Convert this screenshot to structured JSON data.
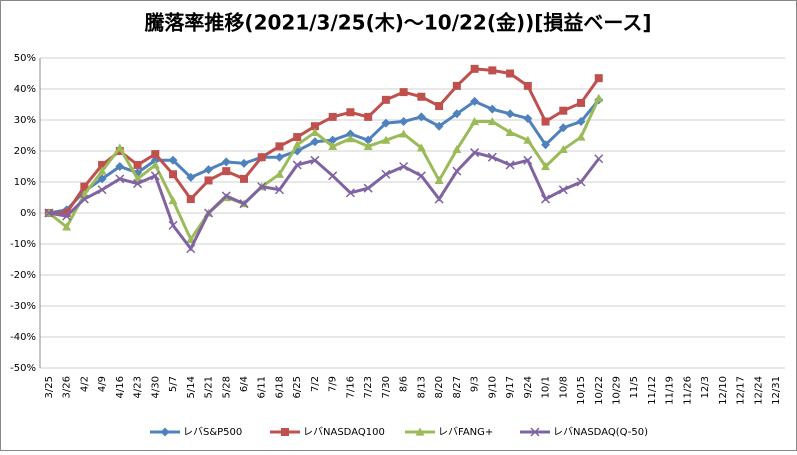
{
  "chart_data": {
    "type": "line",
    "title": "騰落率推移(2021/3/25(木)～10/22(金))[損益ベース]",
    "categories": [
      "3/25",
      "3/26",
      "4/2",
      "4/9",
      "4/16",
      "4/23",
      "4/30",
      "5/7",
      "5/14",
      "5/21",
      "5/28",
      "6/4",
      "6/11",
      "6/18",
      "6/25",
      "7/2",
      "7/9",
      "7/16",
      "7/23",
      "7/30",
      "8/6",
      "8/13",
      "8/20",
      "8/27",
      "9/3",
      "9/10",
      "9/17",
      "9/24",
      "10/1",
      "10/8",
      "10/15",
      "10/22",
      "10/29",
      "11/5",
      "11/12",
      "11/19",
      "11/26",
      "12/3",
      "12/10",
      "12/17",
      "12/24",
      "12/31"
    ],
    "series": [
      {
        "name": "レバS&P500",
        "color": "#4f81bd",
        "marker": "diamond",
        "values": [
          0,
          1,
          7,
          11,
          15,
          13,
          17,
          17,
          11.5,
          14,
          16.5,
          16,
          18,
          18,
          20,
          23,
          23.5,
          25.5,
          23.5,
          29,
          29.5,
          31,
          28,
          32,
          36,
          33.5,
          32,
          30.5,
          22,
          27.5,
          29.5,
          36.5,
          null,
          null,
          null,
          null,
          null,
          null,
          null,
          null,
          null,
          null
        ]
      },
      {
        "name": "レバNASDAQ100",
        "color": "#c0504d",
        "marker": "square",
        "values": [
          0,
          0,
          8.5,
          15.5,
          20,
          15.5,
          19,
          12.5,
          4.5,
          10.5,
          13.5,
          11,
          18,
          21.5,
          24.5,
          28,
          31,
          32.5,
          31,
          36.5,
          39,
          37.5,
          34.5,
          41,
          46.5,
          46,
          45,
          41,
          29.5,
          33,
          35.5,
          43.5,
          null,
          null,
          null,
          null,
          null,
          null,
          null,
          null,
          null,
          null
        ]
      },
      {
        "name": "レバFANG+",
        "color": "#9bbb59",
        "marker": "triangle",
        "values": [
          0,
          -4.5,
          6,
          13.5,
          21,
          11,
          15.5,
          4,
          -8.5,
          0,
          5,
          3,
          8.5,
          12.5,
          22,
          26,
          21.5,
          24,
          21.5,
          23.5,
          25.5,
          21,
          10.5,
          20.5,
          29.5,
          29.5,
          26,
          23.5,
          15,
          20.5,
          24.5,
          37,
          null,
          null,
          null,
          null,
          null,
          null,
          null,
          null,
          null,
          null
        ]
      },
      {
        "name": "レバNASDAQ(Q-50)",
        "color": "#8064a2",
        "marker": "x",
        "values": [
          0,
          -1,
          4.5,
          7.5,
          11,
          9.5,
          12,
          -4,
          -11.5,
          0,
          5.5,
          3,
          8.5,
          7.5,
          15.5,
          17,
          12,
          6.5,
          8,
          12.5,
          15,
          12,
          4.5,
          13.5,
          19.5,
          18,
          15.5,
          17,
          4.5,
          7.5,
          10,
          17.5,
          null,
          null,
          null,
          null,
          null,
          null,
          null,
          null,
          null,
          null
        ]
      }
    ],
    "ylim": [
      -50,
      50
    ],
    "yticks": [
      {
        "value": -50,
        "label": "-50%"
      },
      {
        "value": -40,
        "label": "-40%"
      },
      {
        "value": -30,
        "label": "-30%"
      },
      {
        "value": -20,
        "label": "-20%"
      },
      {
        "value": -10,
        "label": "-10%"
      },
      {
        "value": 0,
        "label": "0%"
      },
      {
        "value": 10,
        "label": "10%"
      },
      {
        "value": 20,
        "label": "20%"
      },
      {
        "value": 30,
        "label": "30%"
      },
      {
        "value": 40,
        "label": "40%"
      },
      {
        "value": 50,
        "label": "50%"
      }
    ],
    "grid": true,
    "legend": "bottom"
  }
}
